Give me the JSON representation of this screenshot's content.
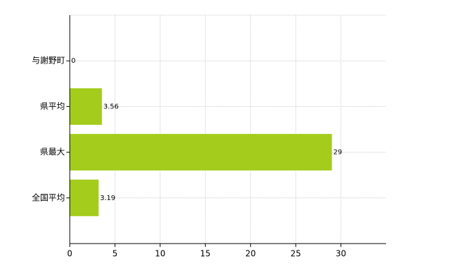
{
  "chart_data": {
    "type": "hbar",
    "categories": [
      "与謝野町",
      "県平均",
      "県最大",
      "全国平均"
    ],
    "values": [
      0,
      3.56,
      29,
      3.19
    ],
    "color": "#a4cc1c",
    "xlim": [
      0,
      35
    ],
    "xticks": [
      0,
      5,
      10,
      15,
      20,
      25,
      30
    ],
    "grid": true
  }
}
